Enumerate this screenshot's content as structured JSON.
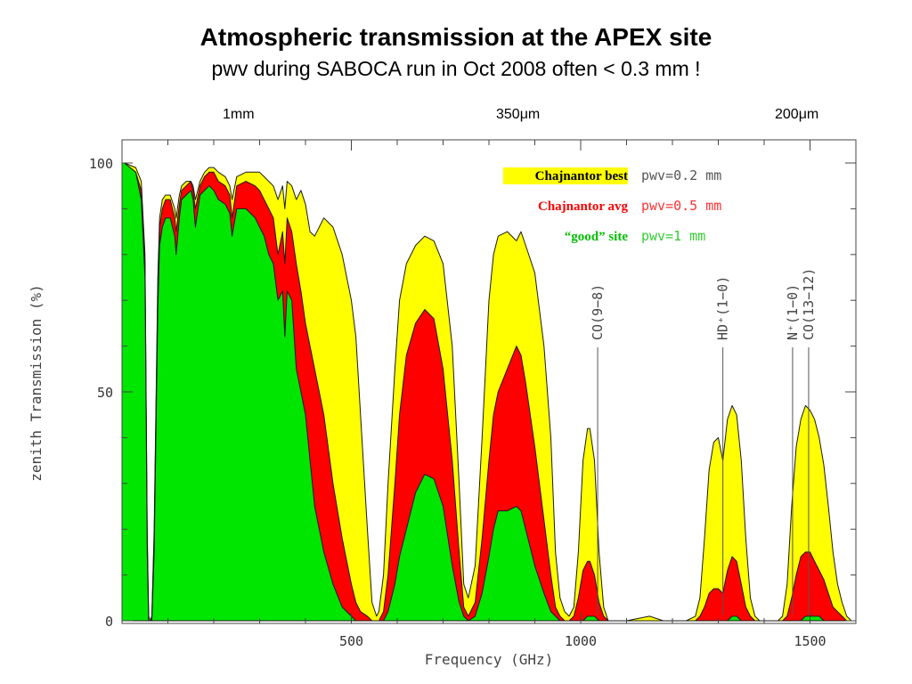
{
  "header": {
    "title": "Atmospheric transmission at the APEX site",
    "subtitle": "pwv during SABOCA run in Oct 2008 often < 0.3 mm !"
  },
  "wavelength_labels": [
    "1mm",
    "350μm",
    "200μm"
  ],
  "chart_data": {
    "type": "area",
    "title": "Atmospheric transmission at the APEX site",
    "subtitle": "pwv during SABOCA run in Oct 2008 often < 0.3 mm !",
    "xlabel": "Frequency (GHz)",
    "ylabel": "zenith Transmission (%)",
    "xlim": [
      0,
      1600
    ],
    "ylim": [
      0,
      100
    ],
    "xticks": [
      500,
      1000,
      1500
    ],
    "yticks": [
      0,
      50,
      100
    ],
    "top_axis_labels": [
      {
        "label": "1mm",
        "x": 300
      },
      {
        "label": "350μm",
        "x": 857
      },
      {
        "label": "200μm",
        "x": 1499
      }
    ],
    "legend": [
      {
        "name": "Chajnantor best",
        "pwv": "pwv=0.2 mm",
        "color": "#ffff00",
        "label_color": "#000000",
        "highlight": "#ffff00",
        "pwv_color": "#555555"
      },
      {
        "name": "Chajnantor avg",
        "pwv": "pwv=0.5 mm",
        "color": "#ff0000",
        "label_color": "#ff0000",
        "pwv_color": "#ff3333"
      },
      {
        "name": "“good” site",
        "pwv": "pwv=1 mm",
        "color": "#00e600",
        "label_color": "#00c000",
        "pwv_color": "#33cc33"
      }
    ],
    "line_annotations": [
      {
        "label": "CO(9−8)",
        "x": 1037
      },
      {
        "label": "HD⁺(1−0)",
        "x": 1310
      },
      {
        "label": "N⁺(1−0)",
        "x": 1462
      },
      {
        "label": "CO(13−12)",
        "x": 1497
      }
    ],
    "series": [
      {
        "name": "Chajnantor best",
        "pwv": "pwv=0.2 mm",
        "color": "#ffff00",
        "x": [
          0,
          5,
          30,
          42,
          50,
          55,
          58,
          62,
          65,
          70,
          78,
          82,
          88,
          95,
          105,
          115,
          118,
          125,
          130,
          140,
          150,
          155,
          160,
          170,
          180,
          190,
          200,
          210,
          225,
          235,
          240,
          250,
          270,
          290,
          300,
          310,
          320,
          330,
          340,
          350,
          355,
          360,
          370,
          380,
          390,
          400,
          410,
          420,
          440,
          460,
          480,
          500,
          510,
          520,
          535,
          545,
          555,
          560,
          570,
          580,
          595,
          605,
          620,
          640,
          660,
          680,
          700,
          720,
          735,
          745,
          755,
          770,
          785,
          800,
          810,
          820,
          840,
          860,
          870,
          880,
          900,
          920,
          935,
          945,
          955,
          965,
          975,
          985,
          995,
          1005,
          1015,
          1020,
          1030,
          1040,
          1050,
          1060,
          1070,
          1080,
          1100,
          1150,
          1180,
          1200,
          1215,
          1230,
          1250,
          1260,
          1270,
          1280,
          1290,
          1300,
          1310,
          1320,
          1330,
          1340,
          1350,
          1360,
          1370,
          1380,
          1390,
          1400,
          1410,
          1420,
          1430,
          1440,
          1450,
          1460,
          1470,
          1480,
          1490,
          1500,
          1510,
          1520,
          1530,
          1540,
          1550,
          1560,
          1570,
          1580,
          1590
        ],
        "y": [
          100,
          100,
          99,
          96,
          80,
          20,
          1,
          0,
          1,
          20,
          75,
          88,
          92,
          93,
          93,
          90,
          88,
          93,
          95,
          96,
          96,
          95,
          92,
          96,
          98,
          99,
          99,
          98,
          97,
          95,
          92,
          97,
          98,
          98,
          98,
          97,
          96,
          95,
          92,
          95,
          90,
          96,
          95,
          92,
          94,
          91,
          85,
          84,
          88,
          86,
          80,
          70,
          62,
          45,
          20,
          4,
          1,
          2,
          10,
          30,
          55,
          70,
          78,
          82,
          84,
          83,
          78,
          60,
          30,
          8,
          5,
          12,
          40,
          70,
          80,
          84,
          85,
          83,
          85,
          82,
          76,
          60,
          40,
          15,
          5,
          2,
          1,
          3,
          15,
          35,
          42,
          42,
          35,
          15,
          3,
          0,
          0,
          0,
          0,
          1,
          0,
          0,
          0,
          0,
          1,
          5,
          18,
          33,
          39,
          40,
          35,
          44,
          47,
          45,
          35,
          18,
          5,
          1,
          0,
          0,
          0,
          0,
          0,
          1,
          8,
          25,
          38,
          44,
          47,
          46,
          44,
          40,
          34,
          25,
          15,
          8,
          4,
          1,
          0
        ]
      },
      {
        "name": "Chajnantor avg",
        "pwv": "pwv=0.5 mm",
        "color": "#ff0000",
        "x": [
          0,
          5,
          30,
          42,
          50,
          55,
          58,
          62,
          65,
          70,
          78,
          82,
          88,
          95,
          105,
          115,
          118,
          125,
          130,
          140,
          150,
          155,
          160,
          170,
          180,
          190,
          200,
          210,
          225,
          235,
          240,
          250,
          270,
          290,
          300,
          310,
          320,
          330,
          340,
          350,
          355,
          360,
          370,
          380,
          390,
          400,
          410,
          420,
          440,
          460,
          480,
          500,
          510,
          520,
          535,
          545,
          555,
          560,
          570,
          580,
          595,
          605,
          620,
          640,
          660,
          680,
          700,
          720,
          735,
          745,
          755,
          770,
          785,
          800,
          810,
          820,
          840,
          860,
          870,
          880,
          900,
          920,
          935,
          945,
          955,
          965,
          975,
          985,
          995,
          1005,
          1015,
          1020,
          1030,
          1040,
          1050,
          1060,
          1070,
          1080,
          1100,
          1150,
          1180,
          1200,
          1215,
          1230,
          1250,
          1260,
          1270,
          1280,
          1290,
          1300,
          1310,
          1320,
          1330,
          1340,
          1350,
          1360,
          1370,
          1380,
          1390,
          1400,
          1410,
          1420,
          1430,
          1440,
          1450,
          1460,
          1470,
          1480,
          1490,
          1500,
          1510,
          1520,
          1530,
          1540,
          1550,
          1560,
          1570,
          1580,
          1590
        ],
        "y": [
          100,
          100,
          98,
          94,
          78,
          18,
          0,
          0,
          1,
          18,
          72,
          86,
          90,
          92,
          92,
          88,
          85,
          91,
          94,
          95,
          96,
          94,
          90,
          95,
          97,
          98,
          98,
          96,
          95,
          93,
          88,
          95,
          96,
          95,
          94,
          92,
          90,
          88,
          80,
          85,
          78,
          88,
          85,
          78,
          72,
          65,
          60,
          55,
          45,
          30,
          18,
          8,
          4,
          2,
          1,
          0,
          0,
          0,
          2,
          10,
          30,
          45,
          58,
          65,
          68,
          66,
          55,
          35,
          15,
          3,
          1,
          4,
          18,
          35,
          45,
          50,
          55,
          60,
          58,
          52,
          38,
          22,
          10,
          3,
          1,
          0,
          0,
          1,
          5,
          11,
          13,
          13,
          10,
          4,
          1,
          0,
          0,
          0,
          0,
          0,
          0,
          0,
          0,
          0,
          0,
          1,
          3,
          6,
          7,
          7,
          6,
          11,
          14,
          13,
          8,
          3,
          1,
          0,
          0,
          0,
          0,
          0,
          0,
          0,
          1,
          5,
          10,
          14,
          15,
          15,
          13,
          11,
          9,
          6,
          3,
          2,
          1,
          0,
          0
        ]
      },
      {
        "name": "“good” site",
        "pwv": "pwv=1 mm",
        "color": "#00e600",
        "x": [
          0,
          5,
          30,
          42,
          50,
          55,
          58,
          62,
          65,
          70,
          78,
          82,
          88,
          95,
          105,
          115,
          118,
          125,
          130,
          140,
          150,
          155,
          160,
          170,
          180,
          190,
          200,
          210,
          225,
          235,
          240,
          250,
          270,
          290,
          300,
          310,
          320,
          330,
          340,
          350,
          355,
          360,
          370,
          380,
          390,
          400,
          410,
          420,
          440,
          460,
          480,
          500,
          510,
          520,
          535,
          545,
          555,
          560,
          570,
          580,
          595,
          605,
          620,
          640,
          660,
          680,
          700,
          720,
          735,
          745,
          755,
          770,
          785,
          800,
          810,
          820,
          840,
          860,
          870,
          880,
          900,
          920,
          935,
          945,
          955,
          965,
          975,
          985,
          995,
          1005,
          1015,
          1020,
          1030,
          1040,
          1050,
          1060,
          1070,
          1080,
          1100,
          1150,
          1180,
          1200,
          1215,
          1230,
          1250,
          1260,
          1270,
          1280,
          1290,
          1300,
          1310,
          1320,
          1330,
          1340,
          1350,
          1360,
          1370,
          1380,
          1390,
          1400,
          1410,
          1420,
          1430,
          1440,
          1450,
          1460,
          1470,
          1480,
          1490,
          1500,
          1510,
          1520,
          1530,
          1540,
          1550,
          1560,
          1570,
          1580,
          1590
        ],
        "y": [
          100,
          100,
          98,
          92,
          75,
          15,
          0,
          0,
          0,
          15,
          68,
          82,
          86,
          88,
          88,
          84,
          80,
          88,
          92,
          93,
          94,
          92,
          86,
          93,
          94,
          95,
          94,
          92,
          91,
          89,
          84,
          90,
          90,
          88,
          86,
          84,
          80,
          78,
          70,
          72,
          62,
          72,
          70,
          55,
          50,
          45,
          35,
          25,
          15,
          8,
          3,
          1,
          0,
          0,
          0,
          0,
          0,
          0,
          0,
          2,
          8,
          14,
          20,
          28,
          32,
          31,
          25,
          12,
          4,
          1,
          0,
          1,
          6,
          14,
          20,
          24,
          24,
          25,
          24,
          20,
          12,
          6,
          2,
          1,
          0,
          0,
          0,
          0,
          0,
          0,
          1,
          1,
          1,
          0,
          0,
          0,
          0,
          0,
          0,
          0,
          0,
          0,
          0,
          0,
          0,
          0,
          0,
          0,
          0,
          0,
          0,
          0,
          1,
          1,
          0,
          0,
          0,
          0,
          0,
          0,
          0,
          0,
          0,
          0,
          0,
          0,
          0,
          0,
          1,
          1,
          1,
          1,
          0,
          0,
          0,
          0,
          0,
          0,
          0
        ]
      }
    ]
  }
}
